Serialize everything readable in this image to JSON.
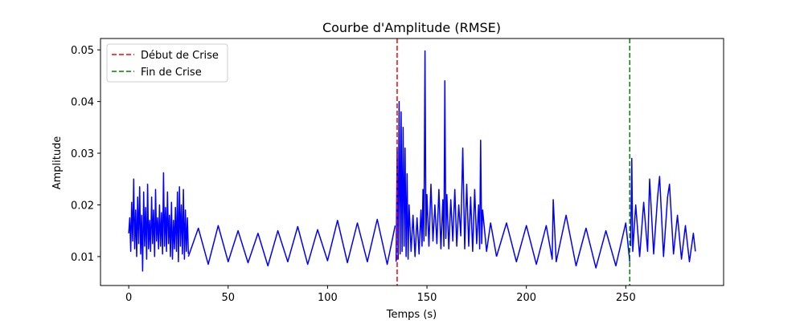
{
  "chart_data": {
    "type": "line",
    "title": "Courbe d'Amplitude (RMSE)",
    "xlabel": "Temps (s)",
    "ylabel": "Amplitude",
    "xlim": [
      -14.2,
      299.2
    ],
    "ylim": [
      0.0044,
      0.0522
    ],
    "xticks": [
      0,
      50,
      100,
      150,
      200,
      250
    ],
    "yticks": [
      0.01,
      0.02,
      0.03,
      0.04,
      0.05
    ],
    "ytick_labels": [
      "0.01",
      "0.02",
      "0.03",
      "0.04",
      "0.05"
    ],
    "grid": false,
    "legend_position": "upper-left",
    "series": [
      {
        "label": "",
        "color": "#0000ff",
        "style": "solid",
        "segments": [
          {
            "x": [
              0,
              0.5,
              1.0,
              1.5,
              2.0,
              2.5,
              3.0,
              3.5,
              4.0,
              4.5,
              5.0,
              5.5,
              6.0,
              6.5,
              7.0,
              7.5,
              8.0,
              8.5,
              9.0,
              9.5,
              10.0,
              10.5,
              11.0,
              11.5,
              12.0,
              12.5,
              13.0,
              13.5,
              14.0,
              14.5,
              15.0,
              15.5,
              16.0,
              16.5,
              17.0,
              17.5,
              18.0,
              18.5,
              19.0,
              19.5,
              20.0,
              20.5,
              21.0,
              21.5,
              22.0,
              22.5,
              23.0,
              23.5,
              24.0,
              24.5,
              25.0,
              25.5,
              26.0,
              26.5,
              27.0,
              27.5,
              28.0,
              28.5,
              29.0,
              29.5,
              30.0
            ],
            "y": [
              0.0145,
              0.0175,
              0.011,
              0.0205,
              0.013,
              0.025,
              0.0115,
              0.019,
              0.01,
              0.0215,
              0.0125,
              0.0235,
              0.0105,
              0.018,
              0.0072,
              0.0225,
              0.012,
              0.0195,
              0.0095,
              0.024,
              0.0115,
              0.017,
              0.011,
              0.0215,
              0.0125,
              0.019,
              0.01,
              0.023,
              0.013,
              0.0175,
              0.0115,
              0.02,
              0.012,
              0.0185,
              0.0105,
              0.0262,
              0.012,
              0.0195,
              0.011,
              0.0225,
              0.0125,
              0.018,
              0.01,
              0.0205,
              0.0095,
              0.017,
              0.0115,
              0.0195,
              0.011,
              0.0225,
              0.009,
              0.0235,
              0.012,
              0.02,
              0.0105,
              0.023,
              0.0095,
              0.019,
              0.011,
              0.0175,
              0.0105
            ]
          },
          {
            "x": [
              30,
              35,
              40,
              45,
              50,
              55,
              60,
              65,
              70,
              75,
              80,
              85,
              90,
              95,
              100,
              105,
              110,
              115,
              120,
              125,
              130,
              134
            ],
            "y": [
              0.01,
              0.0155,
              0.0085,
              0.016,
              0.009,
              0.015,
              0.0088,
              0.0145,
              0.0082,
              0.015,
              0.009,
              0.0158,
              0.0085,
              0.0152,
              0.0092,
              0.017,
              0.0088,
              0.0165,
              0.009,
              0.0172,
              0.0085,
              0.016
            ]
          },
          {
            "x": [
              134.5,
              135,
              135.5,
              136,
              136.5,
              137,
              137.5,
              138,
              138.5,
              139,
              139.5,
              140,
              140.5,
              141,
              142,
              143,
              144,
              145,
              146,
              147,
              147.5,
              148,
              148.5,
              149,
              149.5,
              150,
              151,
              152,
              153,
              154,
              155,
              156,
              157,
              158,
              158.5,
              159,
              159.5,
              160,
              161,
              162,
              163,
              164,
              165,
              166,
              167,
              168,
              169,
              170,
              171,
              172,
              173,
              174,
              175,
              176,
              176.5,
              177,
              177.5,
              178,
              180,
              182,
              185
            ],
            "y": [
              0.009,
              0.031,
              0.0095,
              0.04,
              0.0105,
              0.038,
              0.011,
              0.035,
              0.012,
              0.031,
              0.01,
              0.026,
              0.0095,
              0.02,
              0.011,
              0.018,
              0.01,
              0.0175,
              0.0105,
              0.019,
              0.012,
              0.023,
              0.013,
              0.0498,
              0.014,
              0.022,
              0.012,
              0.024,
              0.013,
              0.02,
              0.0125,
              0.023,
              0.0115,
              0.021,
              0.012,
              0.044,
              0.0135,
              0.022,
              0.0115,
              0.021,
              0.013,
              0.023,
              0.012,
              0.02,
              0.014,
              0.031,
              0.0115,
              0.024,
              0.012,
              0.0215,
              0.011,
              0.023,
              0.0125,
              0.02,
              0.0115,
              0.0325,
              0.0125,
              0.019,
              0.011,
              0.0165,
              0.01
            ]
          },
          {
            "x": [
              185,
              190,
              195,
              200,
              205,
              210,
              213,
              213.5,
              215,
              220,
              225,
              230,
              235,
              240,
              245,
              250,
              252
            ],
            "y": [
              0.01,
              0.0165,
              0.009,
              0.016,
              0.0085,
              0.016,
              0.0095,
              0.021,
              0.009,
              0.018,
              0.0082,
              0.0155,
              0.0078,
              0.015,
              0.0082,
              0.0165,
              0.009
            ]
          },
          {
            "x": [
              252.5,
              253,
              253.5,
              255,
              257,
              259,
              261,
              262,
              264,
              266,
              267,
              269,
              271,
              272,
              274,
              276,
              278,
              280,
              282,
              284,
              285
            ],
            "y": [
              0.012,
              0.029,
              0.011,
              0.02,
              0.01,
              0.0205,
              0.011,
              0.025,
              0.0105,
              0.0215,
              0.0255,
              0.01,
              0.0215,
              0.024,
              0.0105,
              0.018,
              0.0095,
              0.016,
              0.009,
              0.0145,
              0.011
            ]
          }
        ]
      }
    ],
    "vlines": [
      {
        "label": "Début de Crise",
        "x": 135,
        "color": "#ff0000",
        "style": "dashed"
      },
      {
        "label": "Fin de Crise",
        "x": 252,
        "color": "#008000",
        "style": "dashed"
      }
    ]
  }
}
